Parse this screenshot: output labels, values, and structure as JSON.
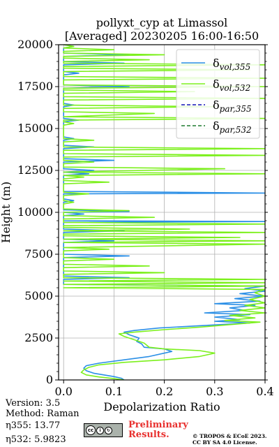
{
  "header": {
    "title_line1": "pollyxt_cyp at Limassol",
    "title_line2": "[Averaged] 20230205 16:00-16:50"
  },
  "footer": {
    "version": "Version: 3.5",
    "method": "Method: Raman",
    "eta355": "η355:  13.77",
    "eta532": "η532: 5.9823",
    "preliminary_line1": "Preliminary",
    "preliminary_line2": "Results.",
    "credit_line1": "© TROPOS & ECoE 2023.",
    "credit_line2": "CC BY SA 4.0 License."
  },
  "chart_data": {
    "type": "line",
    "xlabel": "Depolarization Ratio",
    "ylabel": "Height (m)",
    "xlim": [
      -0.01,
      0.4
    ],
    "ylim": [
      0,
      20000
    ],
    "xticks": [
      "0.0",
      "0.1",
      "0.2",
      "0.3",
      "0.4"
    ],
    "xtick_values": [
      0.0,
      0.1,
      0.2,
      0.3,
      0.4
    ],
    "yticks": [
      "0",
      "2500",
      "5000",
      "7500",
      "10000",
      "12500",
      "15000",
      "17500",
      "20000"
    ],
    "ytick_values": [
      0,
      2500,
      5000,
      7500,
      10000,
      12500,
      15000,
      17500,
      20000
    ],
    "grid": true,
    "legend_position": "top-right",
    "series": [
      {
        "name": "δvol,355",
        "legend_main": "δ",
        "legend_sub": "vol,355",
        "color": "#2b8fe6",
        "style": "solid",
        "points": [
          [
            0.12,
            0
          ],
          [
            0.115,
            100
          ],
          [
            0.1,
            200
          ],
          [
            0.08,
            300
          ],
          [
            0.06,
            400
          ],
          [
            0.045,
            550
          ],
          [
            0.04,
            700
          ],
          [
            0.045,
            850
          ],
          [
            0.07,
            1000
          ],
          [
            0.12,
            1200
          ],
          [
            0.17,
            1400
          ],
          [
            0.215,
            1700
          ],
          [
            0.2,
            1850
          ],
          [
            0.16,
            1950
          ],
          [
            0.155,
            2150
          ],
          [
            0.145,
            2300
          ],
          [
            0.15,
            2500
          ],
          [
            0.13,
            2700
          ],
          [
            0.12,
            2850
          ],
          [
            0.14,
            2950
          ],
          [
            0.19,
            3100
          ],
          [
            0.25,
            3200
          ],
          [
            0.31,
            3300
          ],
          [
            0.37,
            3400
          ],
          [
            0.3,
            3500
          ],
          [
            0.35,
            3600
          ],
          [
            0.3,
            3750
          ],
          [
            0.37,
            3900
          ],
          [
            0.28,
            4000
          ],
          [
            0.36,
            4150
          ],
          [
            0.33,
            4300
          ],
          [
            0.38,
            4450
          ],
          [
            0.3,
            4550
          ],
          [
            0.39,
            4700
          ],
          [
            0.34,
            4850
          ],
          [
            0.4,
            5000
          ],
          [
            0.35,
            5150
          ],
          [
            0.4,
            5300
          ],
          [
            0.36,
            5450
          ],
          [
            0.4,
            5600
          ],
          [
            0.0,
            5700
          ],
          [
            0.0,
            6000
          ],
          [
            0.13,
            6100
          ],
          [
            0.0,
            6200
          ],
          [
            0.0,
            7300
          ],
          [
            0.13,
            7400
          ],
          [
            0.0,
            7500
          ],
          [
            0.0,
            8200
          ],
          [
            0.1,
            8300
          ],
          [
            0.0,
            8400
          ],
          [
            0.0,
            8800
          ],
          [
            0.12,
            8900
          ],
          [
            0.0,
            9000
          ],
          [
            0.0,
            9400
          ],
          [
            0.4,
            9450
          ],
          [
            0.0,
            9500
          ],
          [
            0.0,
            9800
          ],
          [
            0.04,
            9900
          ],
          [
            0.0,
            10000
          ],
          [
            0.13,
            10050
          ],
          [
            0.0,
            10150
          ],
          [
            0.0,
            10600
          ],
          [
            0.02,
            10700
          ],
          [
            0.0,
            10800
          ],
          [
            0.0,
            11100
          ],
          [
            0.4,
            11150
          ],
          [
            0.0,
            11250
          ],
          [
            0.0,
            12200
          ],
          [
            0.05,
            12300
          ],
          [
            0.0,
            12400
          ],
          [
            0.06,
            12500
          ],
          [
            0.0,
            12600
          ],
          [
            0.0,
            13000
          ],
          [
            0.1,
            13100
          ],
          [
            0.0,
            13200
          ],
          [
            0.0,
            13800
          ],
          [
            0.06,
            13900
          ],
          [
            0.0,
            14000
          ],
          [
            0.0,
            14300
          ],
          [
            0.02,
            14400
          ],
          [
            0.0,
            14500
          ],
          [
            0.0,
            15400
          ],
          [
            0.03,
            15500
          ],
          [
            0.0,
            15600
          ],
          [
            0.0,
            16300
          ],
          [
            0.02,
            16400
          ],
          [
            0.0,
            16500
          ],
          [
            0.0,
            17400
          ],
          [
            0.13,
            17500
          ],
          [
            0.0,
            17600
          ],
          [
            0.0,
            18200
          ],
          [
            0.03,
            18300
          ],
          [
            0.0,
            18400
          ],
          [
            0.0,
            18800
          ],
          [
            0.12,
            18900
          ],
          [
            0.0,
            19000
          ],
          [
            0.0,
            19300
          ],
          [
            0.13,
            19400
          ],
          [
            0.0,
            19500
          ],
          [
            0.0,
            19800
          ],
          [
            0.02,
            19900
          ],
          [
            0.0,
            20000
          ]
        ]
      },
      {
        "name": "δvol,532",
        "legend_main": "δ",
        "legend_sub": "vol,532",
        "color": "#7cf01c",
        "style": "solid",
        "points": [
          [
            0.12,
            0
          ],
          [
            0.1,
            80
          ],
          [
            0.07,
            180
          ],
          [
            0.045,
            300
          ],
          [
            0.035,
            450
          ],
          [
            0.04,
            600
          ],
          [
            0.05,
            750
          ],
          [
            0.07,
            900
          ],
          [
            0.12,
            1050
          ],
          [
            0.2,
            1200
          ],
          [
            0.27,
            1400
          ],
          [
            0.3,
            1600
          ],
          [
            0.27,
            1750
          ],
          [
            0.2,
            1850
          ],
          [
            0.17,
            1950
          ],
          [
            0.16,
            2200
          ],
          [
            0.14,
            2400
          ],
          [
            0.12,
            2600
          ],
          [
            0.11,
            2750
          ],
          [
            0.14,
            2850
          ],
          [
            0.2,
            3000
          ],
          [
            0.27,
            3150
          ],
          [
            0.33,
            3300
          ],
          [
            0.39,
            3450
          ],
          [
            0.32,
            3550
          ],
          [
            0.38,
            3700
          ],
          [
            0.33,
            3850
          ],
          [
            0.4,
            4000
          ],
          [
            0.35,
            4150
          ],
          [
            0.4,
            4300
          ],
          [
            0.36,
            4450
          ],
          [
            0.4,
            4600
          ],
          [
            0.37,
            4800
          ],
          [
            0.4,
            5000
          ],
          [
            0.38,
            5200
          ],
          [
            0.4,
            5400
          ],
          [
            0.0,
            5500
          ],
          [
            0.4,
            5600
          ],
          [
            0.0,
            5700
          ],
          [
            0.4,
            5800
          ],
          [
            0.0,
            5900
          ],
          [
            0.4,
            6000
          ],
          [
            0.0,
            6100
          ],
          [
            0.0,
            6300
          ],
          [
            0.2,
            6400
          ],
          [
            0.0,
            6500
          ],
          [
            0.0,
            6700
          ],
          [
            0.17,
            6800
          ],
          [
            0.0,
            6900
          ],
          [
            0.0,
            7100
          ],
          [
            0.1,
            7200
          ],
          [
            0.0,
            7300
          ],
          [
            0.0,
            7700
          ],
          [
            0.09,
            7800
          ],
          [
            0.0,
            7900
          ],
          [
            0.4,
            8100
          ],
          [
            0.0,
            8200
          ],
          [
            0.4,
            8300
          ],
          [
            0.0,
            8400
          ],
          [
            0.35,
            8500
          ],
          [
            0.0,
            8600
          ],
          [
            0.0,
            8700
          ],
          [
            0.4,
            8800
          ],
          [
            0.0,
            8900
          ],
          [
            0.25,
            9000
          ],
          [
            0.0,
            9100
          ],
          [
            0.0,
            9200
          ],
          [
            0.4,
            9300
          ],
          [
            0.0,
            9400
          ],
          [
            0.0,
            9600
          ],
          [
            0.18,
            9700
          ],
          [
            0.0,
            9800
          ],
          [
            0.0,
            10000
          ],
          [
            0.13,
            10100
          ],
          [
            0.0,
            10200
          ],
          [
            0.0,
            10500
          ],
          [
            0.02,
            10600
          ],
          [
            0.0,
            10700
          ],
          [
            0.0,
            11000
          ],
          [
            0.05,
            11100
          ],
          [
            0.0,
            11200
          ],
          [
            0.0,
            11700
          ],
          [
            0.09,
            11800
          ],
          [
            0.0,
            11900
          ],
          [
            0.0,
            12000
          ],
          [
            0.04,
            12100
          ],
          [
            0.0,
            12200
          ],
          [
            0.4,
            12300
          ],
          [
            0.0,
            12400
          ],
          [
            0.32,
            12600
          ],
          [
            0.0,
            12700
          ],
          [
            0.0,
            12900
          ],
          [
            0.06,
            13000
          ],
          [
            0.0,
            13100
          ],
          [
            0.0,
            13300
          ],
          [
            0.4,
            13400
          ],
          [
            0.0,
            13500
          ],
          [
            0.0,
            13700
          ],
          [
            0.4,
            13800
          ],
          [
            0.0,
            13900
          ],
          [
            0.0,
            14200
          ],
          [
            0.06,
            14300
          ],
          [
            0.0,
            14400
          ],
          [
            0.0,
            15200
          ],
          [
            0.02,
            15300
          ],
          [
            0.0,
            15400
          ],
          [
            0.0,
            15500
          ],
          [
            0.4,
            15600
          ],
          [
            0.0,
            15700
          ],
          [
            0.18,
            15900
          ],
          [
            0.0,
            16000
          ],
          [
            0.0,
            16200
          ],
          [
            0.3,
            16300
          ],
          [
            0.0,
            16400
          ],
          [
            0.0,
            16700
          ],
          [
            0.4,
            16800
          ],
          [
            0.0,
            16900
          ],
          [
            0.0,
            17100
          ],
          [
            0.26,
            17200
          ],
          [
            0.0,
            17300
          ],
          [
            0.0,
            17400
          ],
          [
            0.4,
            17500
          ],
          [
            0.0,
            17600
          ],
          [
            0.0,
            17900
          ],
          [
            0.4,
            18000
          ],
          [
            0.0,
            18100
          ],
          [
            0.0,
            18400
          ],
          [
            0.37,
            18500
          ],
          [
            0.0,
            18600
          ],
          [
            0.0,
            18700
          ],
          [
            0.4,
            18800
          ],
          [
            0.0,
            18900
          ],
          [
            0.0,
            19000
          ],
          [
            0.17,
            19100
          ],
          [
            0.0,
            19200
          ],
          [
            0.0,
            19300
          ],
          [
            0.2,
            19400
          ],
          [
            0.0,
            19500
          ],
          [
            0.0,
            19600
          ],
          [
            0.1,
            19700
          ],
          [
            0.0,
            19800
          ],
          [
            0.02,
            19900
          ],
          [
            0.0,
            20000
          ]
        ]
      },
      {
        "name": "δpar,355",
        "legend_main": "δ",
        "legend_sub": "par,355",
        "color": "#1515b8",
        "style": "dashed",
        "points": []
      },
      {
        "name": "δpar,532",
        "legend_main": "δ",
        "legend_sub": "par,532",
        "color": "#1d7a2e",
        "style": "dashed",
        "points": []
      }
    ]
  }
}
